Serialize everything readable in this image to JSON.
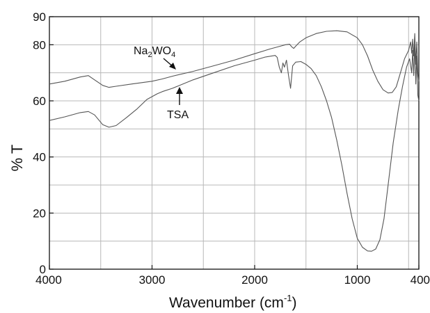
{
  "chart_data": {
    "type": "line",
    "title": "",
    "xlabel": "Wavenumber (cm",
    "xlabel_sup": "-1",
    "xlabel_end": ")",
    "ylabel": "% T",
    "xlim": [
      4000,
      400
    ],
    "ylim": [
      0,
      90
    ],
    "x_ticks": [
      4000,
      3000,
      2000,
      1000,
      400
    ],
    "y_ticks": [
      0,
      20,
      40,
      60,
      80,
      90
    ],
    "x_minor_grid": [
      3500,
      2500,
      1500,
      500
    ],
    "y_minor_grid": [
      10,
      30,
      50,
      70
    ],
    "grid": true,
    "line_color": "#555555",
    "series": [
      {
        "name": "Na2WO4",
        "points": [
          [
            4000,
            66.0
          ],
          [
            3850,
            67.0
          ],
          [
            3700,
            68.5
          ],
          [
            3620,
            69.0
          ],
          [
            3560,
            67.5
          ],
          [
            3480,
            65.5
          ],
          [
            3420,
            64.8
          ],
          [
            3350,
            65.2
          ],
          [
            3200,
            66.0
          ],
          [
            3000,
            67.0
          ],
          [
            2900,
            67.8
          ],
          [
            2800,
            68.8
          ],
          [
            2600,
            70.5
          ],
          [
            2400,
            72.5
          ],
          [
            2200,
            74.5
          ],
          [
            2000,
            76.8
          ],
          [
            1850,
            78.5
          ],
          [
            1750,
            79.5
          ],
          [
            1700,
            80.0
          ],
          [
            1660,
            80.2
          ],
          [
            1640,
            79.3
          ],
          [
            1620,
            78.7
          ],
          [
            1600,
            79.5
          ],
          [
            1560,
            81.0
          ],
          [
            1500,
            82.5
          ],
          [
            1400,
            84.0
          ],
          [
            1300,
            84.8
          ],
          [
            1200,
            85.0
          ],
          [
            1100,
            84.6
          ],
          [
            1000,
            82.5
          ],
          [
            950,
            80.0
          ],
          [
            900,
            76.0
          ],
          [
            850,
            71.0
          ],
          [
            800,
            67.0
          ],
          [
            750,
            64.0
          ],
          [
            700,
            62.8
          ],
          [
            660,
            63.0
          ],
          [
            620,
            65.0
          ],
          [
            580,
            70.0
          ],
          [
            540,
            75.0
          ],
          [
            500,
            78.0
          ],
          [
            480,
            81.0
          ],
          [
            470,
            77.0
          ],
          [
            460,
            82.0
          ],
          [
            450,
            76.0
          ],
          [
            440,
            84.0
          ],
          [
            430,
            73.0
          ],
          [
            420,
            81.0
          ],
          [
            410,
            70.0
          ],
          [
            400,
            67.0
          ]
        ]
      },
      {
        "name": "TSA",
        "points": [
          [
            4000,
            53.0
          ],
          [
            3850,
            54.3
          ],
          [
            3700,
            55.8
          ],
          [
            3620,
            56.2
          ],
          [
            3560,
            55.0
          ],
          [
            3480,
            51.5
          ],
          [
            3420,
            50.6
          ],
          [
            3350,
            51.2
          ],
          [
            3250,
            54.0
          ],
          [
            3150,
            57.0
          ],
          [
            3050,
            60.5
          ],
          [
            2950,
            62.5
          ],
          [
            2900,
            63.3
          ],
          [
            2800,
            64.5
          ],
          [
            2600,
            67.5
          ],
          [
            2400,
            70.0
          ],
          [
            2200,
            72.5
          ],
          [
            2000,
            74.5
          ],
          [
            1900,
            75.6
          ],
          [
            1800,
            76.2
          ],
          [
            1780,
            75.5
          ],
          [
            1760,
            72.0
          ],
          [
            1740,
            70.0
          ],
          [
            1725,
            73.5
          ],
          [
            1710,
            72.0
          ],
          [
            1690,
            74.5
          ],
          [
            1670,
            69.0
          ],
          [
            1650,
            64.5
          ],
          [
            1630,
            72.5
          ],
          [
            1600,
            73.8
          ],
          [
            1550,
            74.0
          ],
          [
            1500,
            73.0
          ],
          [
            1450,
            71.5
          ],
          [
            1400,
            69.0
          ],
          [
            1350,
            65.0
          ],
          [
            1300,
            60.0
          ],
          [
            1250,
            54.0
          ],
          [
            1200,
            46.0
          ],
          [
            1150,
            37.0
          ],
          [
            1100,
            27.0
          ],
          [
            1050,
            18.0
          ],
          [
            1000,
            11.0
          ],
          [
            950,
            7.8
          ],
          [
            900,
            6.5
          ],
          [
            860,
            6.4
          ],
          [
            820,
            7.2
          ],
          [
            780,
            10.5
          ],
          [
            740,
            18.0
          ],
          [
            700,
            30.0
          ],
          [
            650,
            45.0
          ],
          [
            600,
            57.0
          ],
          [
            560,
            65.0
          ],
          [
            520,
            72.0
          ],
          [
            490,
            75.0
          ],
          [
            470,
            70.0
          ],
          [
            460,
            78.0
          ],
          [
            450,
            69.0
          ],
          [
            440,
            80.0
          ],
          [
            430,
            66.0
          ],
          [
            420,
            76.0
          ],
          [
            410,
            62.0
          ],
          [
            400,
            60.0
          ]
        ]
      }
    ],
    "annotations": [
      {
        "label": "Na",
        "sub1": "2",
        "mid": "WO",
        "sub2": "4",
        "series": "Na2WO4"
      },
      {
        "label": "TSA",
        "series": "TSA"
      }
    ]
  }
}
